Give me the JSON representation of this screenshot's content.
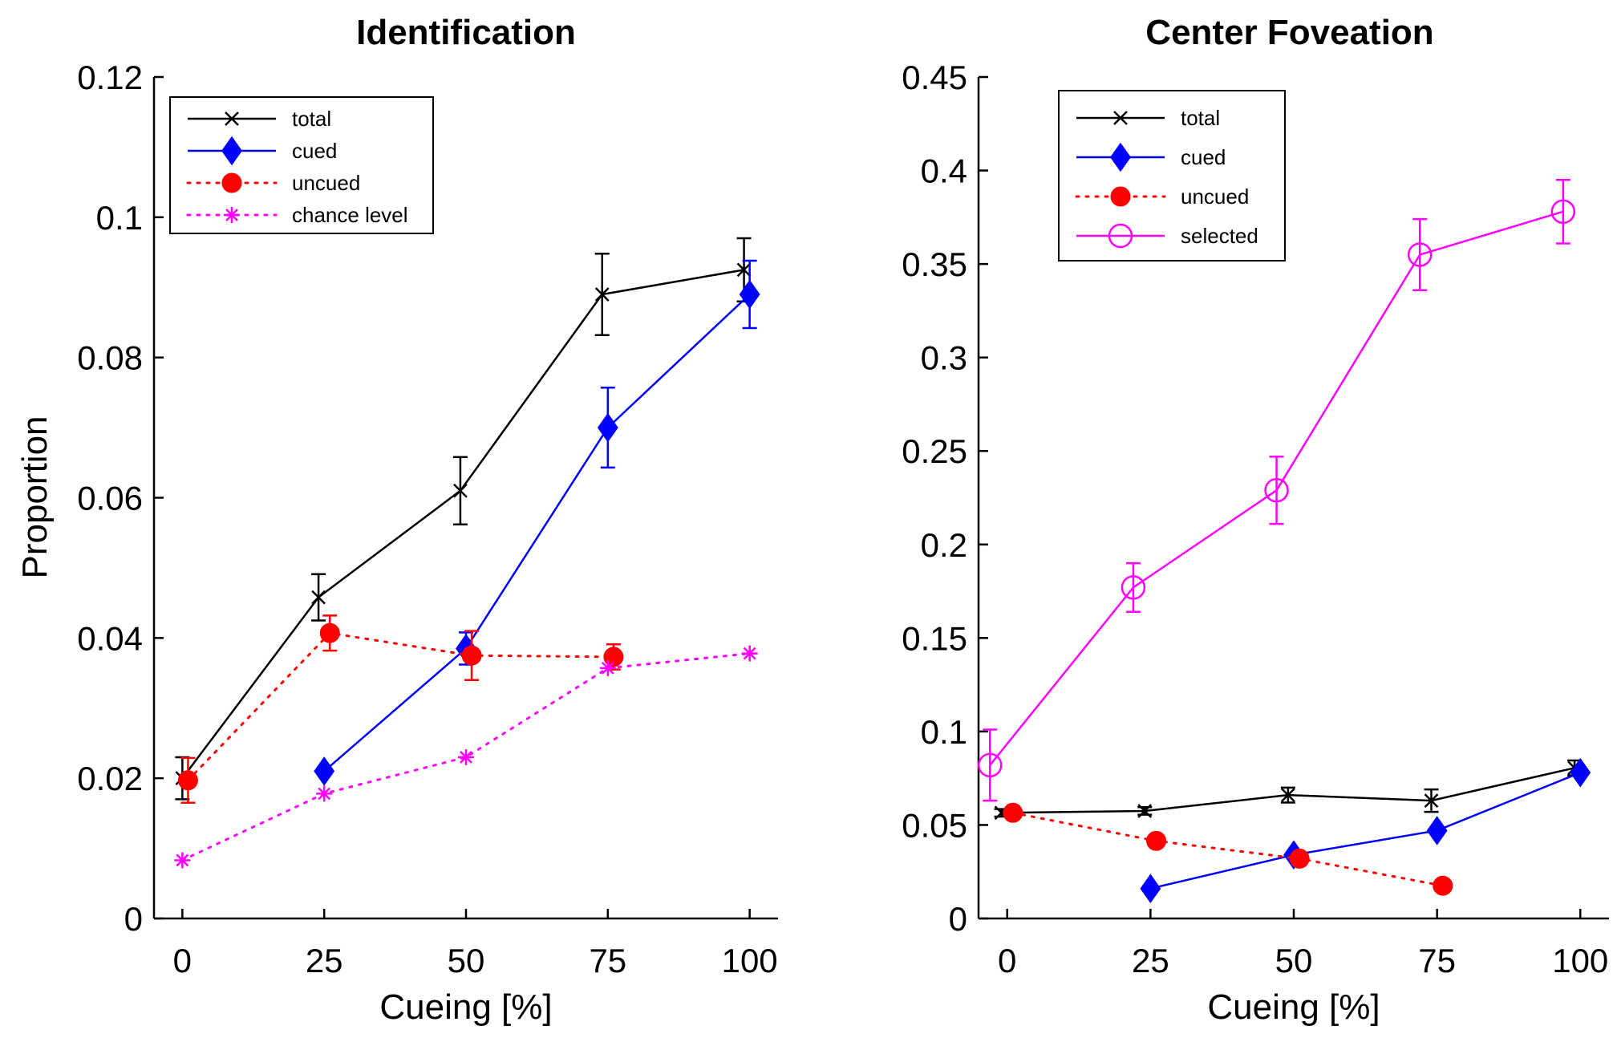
{
  "chart_data": [
    {
      "type": "line",
      "title": "Identification",
      "xlabel": "Cueing [%]",
      "ylabel": "Proportion",
      "xticks": [
        "0",
        "25",
        "50",
        "75",
        "100"
      ],
      "yticks": [
        "0",
        "0.02",
        "0.04",
        "0.06",
        "0.08",
        "0.1",
        "0.12"
      ],
      "xlim": [
        -5,
        105
      ],
      "ylim": [
        0,
        0.12
      ],
      "legend_position": "top-left",
      "series": [
        {
          "name": "total",
          "color": "#000000",
          "marker": "x",
          "line": "solid",
          "x": [
            0,
            24,
            49,
            74,
            99
          ],
          "y": [
            0.02,
            0.0458,
            0.061,
            0.089,
            0.0925
          ],
          "err": [
            0.003,
            0.0033,
            0.0048,
            0.0058,
            0.0045
          ]
        },
        {
          "name": "cued",
          "color": "#0000ff",
          "marker": "diamond",
          "line": "solid",
          "x": [
            25,
            50,
            75,
            100
          ],
          "y": [
            0.021,
            0.0385,
            0.07,
            0.089
          ],
          "err": [
            0.0,
            0.0023,
            0.0057,
            0.0048
          ]
        },
        {
          "name": "uncued",
          "color": "#ff0000",
          "marker": "circle",
          "line": "dotted",
          "x": [
            1,
            26,
            51,
            76
          ],
          "y": [
            0.0197,
            0.0407,
            0.0375,
            0.0373
          ],
          "err": [
            0.0032,
            0.0025,
            0.0035,
            0.0018
          ]
        },
        {
          "name": "chance level",
          "color": "#ff00ff",
          "marker": "asterisk",
          "line": "dotted",
          "x": [
            0,
            25,
            50,
            75,
            100
          ],
          "y": [
            0.0083,
            0.0178,
            0.023,
            0.0357,
            0.0378
          ],
          "err": [
            0,
            0,
            0,
            0,
            0
          ]
        }
      ]
    },
    {
      "type": "line",
      "title": "Center Foveation",
      "xlabel": "Cueing [%]",
      "ylabel": "",
      "xticks": [
        "0",
        "25",
        "50",
        "75",
        "100"
      ],
      "yticks": [
        "0",
        "0.05",
        "0.1",
        "0.15",
        "0.2",
        "0.25",
        "0.3",
        "0.35",
        "0.4",
        "0.45"
      ],
      "xlim": [
        -5,
        105
      ],
      "ylim": [
        0,
        0.45
      ],
      "legend_position": "top-left",
      "series": [
        {
          "name": "total",
          "color": "#000000",
          "marker": "x",
          "line": "solid",
          "x": [
            -1,
            24,
            49,
            74,
            99
          ],
          "y": [
            0.0565,
            0.0575,
            0.066,
            0.063,
            0.0805
          ],
          "err": [
            0.002,
            0.002,
            0.004,
            0.006,
            0.004
          ]
        },
        {
          "name": "cued",
          "color": "#0000ff",
          "marker": "diamond",
          "line": "solid",
          "x": [
            25,
            50,
            75,
            100
          ],
          "y": [
            0.016,
            0.034,
            0.047,
            0.078
          ],
          "err": [
            0,
            0,
            0,
            0
          ]
        },
        {
          "name": "uncued",
          "color": "#ff0000",
          "marker": "circle",
          "line": "dotted",
          "x": [
            1,
            26,
            51,
            76
          ],
          "y": [
            0.0565,
            0.0415,
            0.032,
            0.0175
          ],
          "err": [
            0,
            0,
            0,
            0
          ]
        },
        {
          "name": "selected",
          "color": "#ff00ff",
          "marker": "open-circle",
          "line": "solid",
          "x": [
            -3,
            22,
            47,
            72,
            97
          ],
          "y": [
            0.082,
            0.177,
            0.229,
            0.355,
            0.378
          ],
          "err": [
            0.019,
            0.013,
            0.018,
            0.019,
            0.017
          ]
        }
      ]
    }
  ]
}
